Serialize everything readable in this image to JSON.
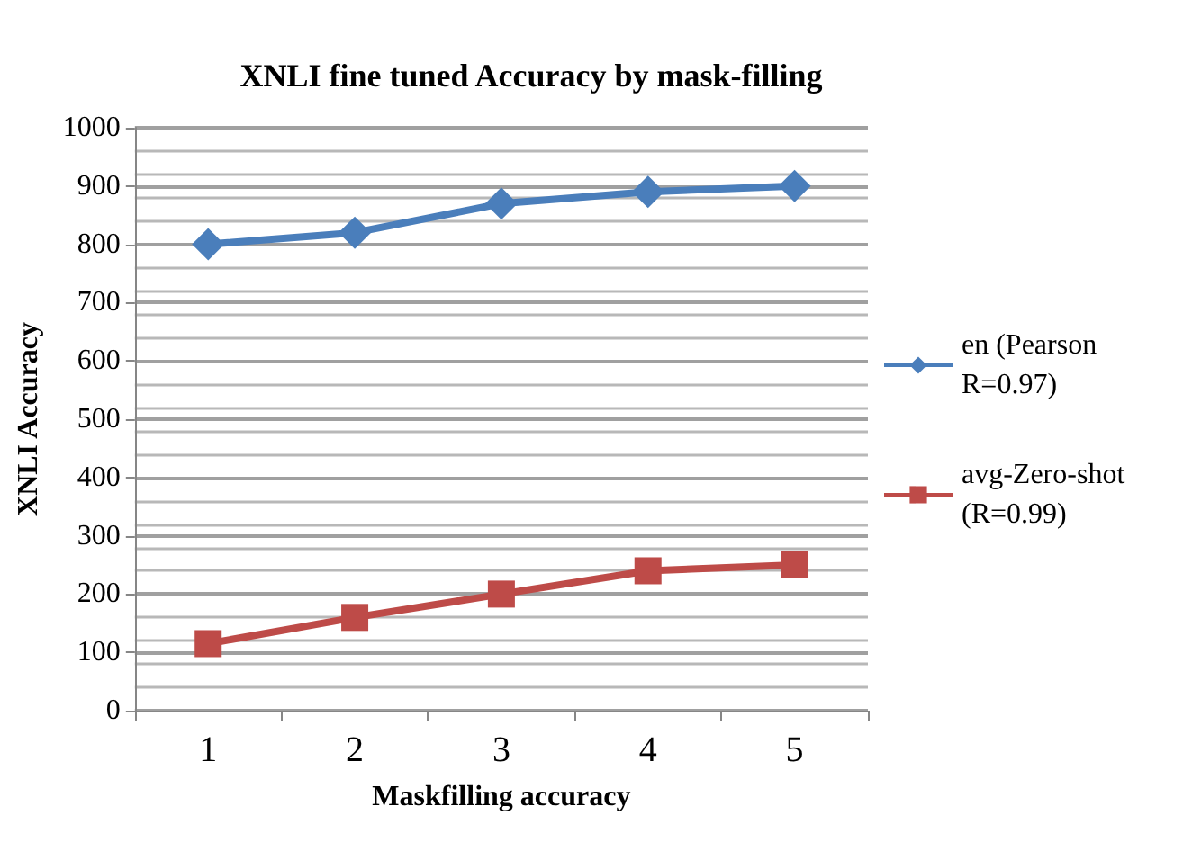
{
  "chart_data": {
    "type": "line",
    "title": "XNLI fine tuned Accuracy by mask-filling",
    "xlabel": "Maskfilling accuracy",
    "ylabel": "XNLI Accuracy",
    "categories": [
      "1",
      "2",
      "3",
      "4",
      "5"
    ],
    "series": [
      {
        "name": "en (Pearson R=0.97)",
        "color": "#4a7ebb",
        "values": [
          800,
          820,
          870,
          890,
          900
        ],
        "marker": "diamond"
      },
      {
        "name": "avg-Zero-shot (R=0.99)",
        "color": "#be4b48",
        "values": [
          115,
          160,
          200,
          240,
          250
        ],
        "marker": "square"
      }
    ],
    "ylim": [
      0,
      1000
    ],
    "yticks": [
      0,
      100,
      200,
      300,
      400,
      500,
      600,
      700,
      800,
      900,
      1000
    ],
    "grid": "y",
    "legend": "right",
    "line_style": "solid"
  }
}
